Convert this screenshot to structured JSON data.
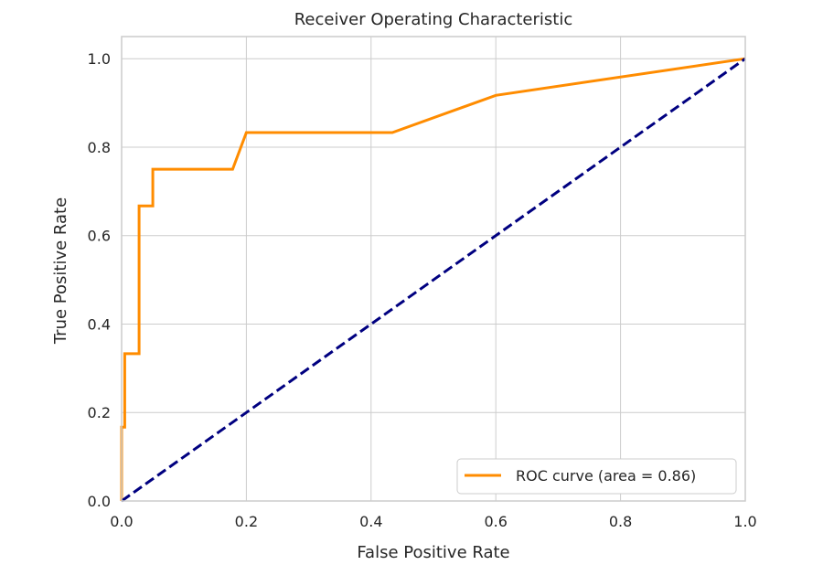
{
  "chart_data": {
    "type": "line",
    "title": "Receiver Operating Characteristic",
    "xlabel": "False Positive Rate",
    "ylabel": "True Positive Rate",
    "xlim": [
      0.0,
      1.0
    ],
    "ylim": [
      0.0,
      1.05
    ],
    "grid": true,
    "legend_position": "lower-right",
    "xticks": [
      0.0,
      0.2,
      0.4,
      0.6,
      0.8,
      1.0
    ],
    "xtick_labels": [
      "0.0",
      "0.2",
      "0.4",
      "0.6",
      "0.8",
      "1.0"
    ],
    "yticks": [
      0.0,
      0.2,
      0.4,
      0.6,
      0.8,
      1.0
    ],
    "ytick_labels": [
      "0.0",
      "0.2",
      "0.4",
      "0.6",
      "0.8",
      "1.0"
    ],
    "series": [
      {
        "name": "ROC curve (area = 0.86)",
        "color": "#ff8c00",
        "style": "solid",
        "x": [
          0.0,
          0.0,
          0.005,
          0.005,
          0.028,
          0.028,
          0.05,
          0.05,
          0.178,
          0.2,
          0.434,
          0.6,
          1.0
        ],
        "y": [
          0.0,
          0.167,
          0.167,
          0.333,
          0.333,
          0.667,
          0.667,
          0.75,
          0.75,
          0.833,
          0.833,
          0.917,
          1.0
        ]
      },
      {
        "color": "#000080",
        "style": "dashed",
        "x": [
          0.0,
          1.0
        ],
        "y": [
          0.0,
          1.0
        ]
      }
    ]
  }
}
